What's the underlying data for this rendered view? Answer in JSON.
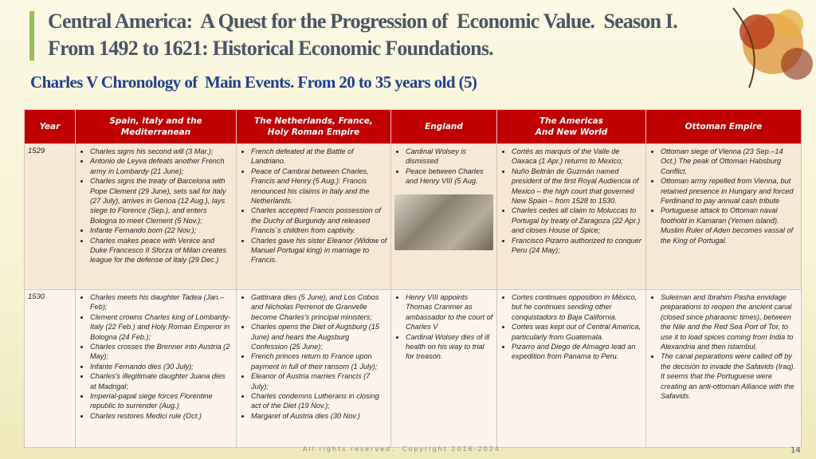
{
  "header": {
    "title_lines": [
      "Central America:  A Quest for the Progression of  Economic Value.  Season I.",
      "From 1492 to 1621: Historical Economic Foundations."
    ],
    "subtitle": "Charles V Chronology of  Main Events. From 20 to 35 years old (5)"
  },
  "table": {
    "columns": [
      "Year",
      "Spain, Italy and the\nMediterranean",
      "The Netherlands, France,\nHoly Roman Empire",
      "England",
      "The Americas\nAnd New World",
      "Ottoman Empire"
    ],
    "rows": [
      {
        "year": "1529",
        "cells": [
          [
            "Charles signs his second will (3 Mar.);",
            "Antonio de Leyva defeats another French army in Lombardy (21 June);",
            "Charles signs the treaty of Barcelona with Pope Clement (29 June), sets sail for Italy (27 July), arrives in Genoa (12 Aug.), lays siege to Florence (Sep.), and enters Bologna to meet Clement (5 Nov.);",
            "Infante Fernando born (22 Nov.);",
            "Charles makes peace with Venice and Duke Francesco II Sforza of Milan creates league for the defense of Italy (29 Dec.)"
          ],
          [
            "French defeated at the Battle of Landriano.",
            "Peace of Cambrai between Charles, Francis and Henry (5 Aug.): Francis renounced his claims in Italy and the Netherlands.",
            "Charles accepted Francis possession of the Duchy of Burgundy and released Francis´s children from captivity.",
            "Charles gave his sister Eleanor (Widow of Manuel Portugal king) in marriage to Francis."
          ],
          [
            "Cardinal Wolsey is dismissed",
            "Peace between Charles and Henry VIII (5 Aug."
          ],
          [
            "Cortés as marquis of the Valle de Oaxaca (1 Apr.)  returns to Mexico;",
            "Nuño Beltrán de Guzmán named president of the first Royal Audiencia of Mexico – the high court that governed New Spain – from 1528 to 1530.",
            "Charles cedes all claim to Moluccas to Portugal by treaty of Zaragoza (22 Apr.) and closes House of Spice;",
            "Francisco Pizarro authorized to conquer Peru (24 May);"
          ],
          [
            "Ottoman siege of Vienna (23 Sep.–14 Oct.) The peak of Ottoman Habsburg Conflict.",
            "Ottoman army repelled from Vienna, but retained presence in Hungary and forced Ferdinand to pay annual cash tribute",
            "Portuguese attack to Ottoman naval foothold in Kamaran (Yemen island). Muslim Ruler of Aden becomes vassal of the King of Portugal."
          ]
        ]
      },
      {
        "year": "1530",
        "cells": [
          [
            "Charles meets his daughter Tadea (Jan.–Feb);",
            "Clement crowns Charles king of Lombardy-Italy (22 Feb.) and Holy Roman Emperor in Bologna (24 Feb.);",
            "Charles crosses the Brenner into Austria (2 May);",
            "Infante Fernando dies (30 July);",
            "Charles's illegitimate daughter Juana dies at Madrigal;",
            "Imperial-papal siege forces Florentine republic to surrender (Aug.)",
            "Charles restores Medici rule (Oct.)"
          ],
          [
            "Gattinara dies (5 June), and Los Cobos and Nicholas Perrenot de Granvelle become Charles's principal ministers;",
            "Charles opens the Diet of Augsburg (15 June) and hears the Augsburg Confession (25 June);",
            "French princes return to France upon payment in full of their ransom (1 July);",
            "Eleanor of Austria marries Francis (7 July);",
            "Charles condemns Lutherans in closing act of the Diet (19 Nov.);",
            "Margaret of Austria dies (30 Nov.)"
          ],
          [
            "Henry VIII appoints Thomas Cranmer as ambassador to the court of Charles V",
            "Cardinal Wolsey dies of ill health  on his way to trial for treason."
          ],
          [
            "Cortes continues opposition in México, but he continues sending other conquistadors to Baja California.",
            "Cortes was kept out of Central America, particularly from Guatemala.",
            "Pizarro and Diego de Almagro lead an expedition from Panama to Peru."
          ],
          [
            "Suleiman and Ibrahim Pasha envidage  preparations to reopen the ancient canal (closed since pharaonic times), between the Nile and the Red Sea Port of Tor, to use it to load spices coming from India to Alexandria and then istambul.",
            "The canal peparations were called off by the decisión to invade the Safavids (Iraq). It seems that the Portuguese were creating an anti-ottoman Alliance with the Safavids."
          ]
        ]
      }
    ]
  },
  "footer": {
    "copyright": "All rights reserved.  Copyright 2016-2024",
    "page": "14"
  }
}
